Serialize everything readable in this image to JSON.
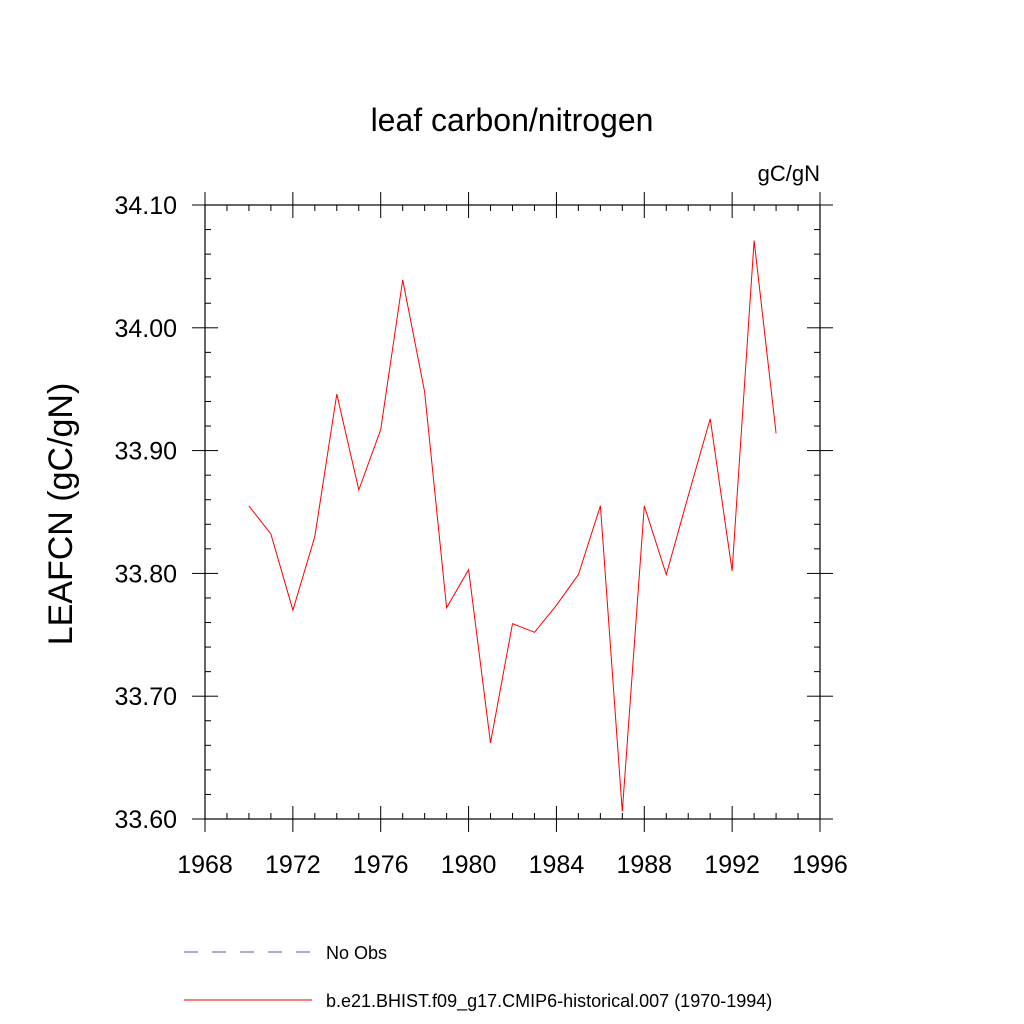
{
  "chart_data": {
    "type": "line",
    "title": "leaf carbon/nitrogen",
    "units_label": "gC/gN",
    "ylabel": "LEAFCN  (gC/gN)",
    "xlabel": "",
    "xlim": [
      1968,
      1996
    ],
    "ylim": [
      33.6,
      34.1
    ],
    "xticks": [
      "1968",
      "1972",
      "1976",
      "1980",
      "1984",
      "1988",
      "1992",
      "1996"
    ],
    "yticks": [
      "33.60",
      "33.70",
      "33.80",
      "33.90",
      "34.00",
      "34.10"
    ],
    "legend_position": "bottom",
    "series": [
      {
        "name": "No Obs",
        "color": "#5a5aa0",
        "style": "dashed",
        "x": [],
        "y": []
      },
      {
        "name": "b.e21.BHIST.f09_g17.CMIP6-historical.007 (1970-1994)",
        "color": "#ff0000",
        "style": "solid",
        "x": [
          1970,
          1971,
          1972,
          1973,
          1974,
          1975,
          1976,
          1977,
          1978,
          1979,
          1980,
          1981,
          1982,
          1983,
          1984,
          1985,
          1986,
          1987,
          1988,
          1989,
          1990,
          1991,
          1992,
          1993,
          1994
        ],
        "y": [
          33.855,
          33.832,
          33.77,
          33.83,
          33.946,
          33.868,
          33.917,
          34.039,
          33.948,
          33.772,
          33.803,
          33.662,
          33.759,
          33.752,
          33.774,
          33.799,
          33.855,
          33.606,
          33.855,
          33.799,
          33.863,
          33.926,
          33.802,
          34.071,
          33.914
        ]
      }
    ]
  }
}
